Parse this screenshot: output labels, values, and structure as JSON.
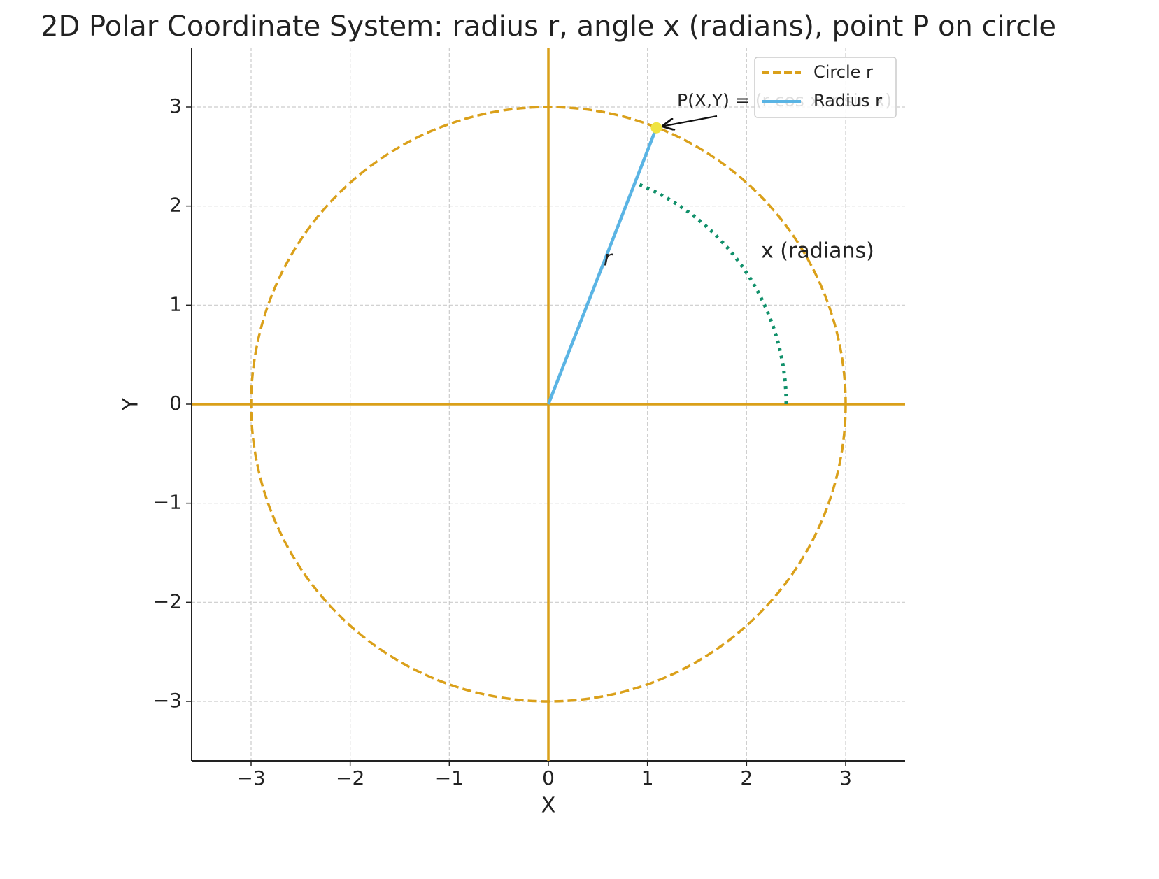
{
  "chart_data": {
    "type": "polar",
    "title": "2D Polar Coordinate System: radius r, angle x (radians), point P on circle",
    "xlabel": "X",
    "ylabel": "Y",
    "xlim": [
      -3.6,
      3.6
    ],
    "ylim": [
      -3.6,
      3.6
    ],
    "xticks": [
      {
        "value": -3,
        "label": "−3"
      },
      {
        "value": -2,
        "label": "−2"
      },
      {
        "value": -1,
        "label": "−1"
      },
      0,
      1,
      2,
      3
    ],
    "yticks": [
      {
        "value": -3,
        "label": "−3"
      },
      {
        "value": -2,
        "label": "−2"
      },
      {
        "value": -1,
        "label": "−1"
      },
      0,
      1,
      2,
      3
    ],
    "grid": true,
    "legend": "upper right",
    "series": [
      {
        "name": "Circle r",
        "color": "#daa01a",
        "radius": 3
      },
      {
        "name": "Radius r",
        "color": "#5ab4e4"
      }
    ],
    "point": {
      "x": 1.09,
      "y": 2.79,
      "color": "#f0e442"
    },
    "angle_arc": {
      "radius": 2.4,
      "angle": 1.2,
      "color": "#10906a"
    },
    "annotations": [
      "P(X,Y) = (r cos x, r sin x)",
      "r",
      "x (radians)"
    ]
  }
}
